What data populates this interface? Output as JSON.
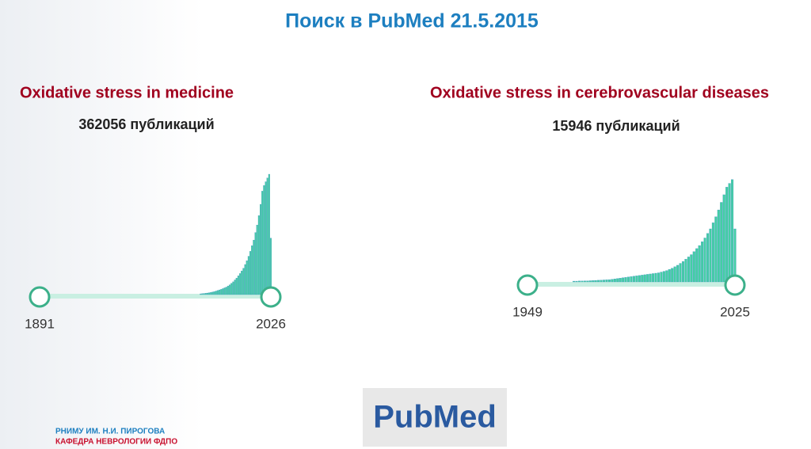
{
  "title": "Поиск в PubMed 21.5.2015",
  "footer": [
    "РНИМУ ИМ. Н.И. ПИРОГОВА",
    "КАФЕДРА НЕВРОЛОГИИ ФДПО"
  ],
  "logo": "PubMed",
  "chart_data": [
    {
      "type": "bar",
      "title": "Oxidative stress in medicine",
      "subtitle": "362056 публикаций",
      "x": [
        1985,
        1986,
        1987,
        1988,
        1989,
        1990,
        1991,
        1992,
        1993,
        1994,
        1995,
        1996,
        1997,
        1998,
        1999,
        2000,
        2001,
        2002,
        2003,
        2004,
        2005,
        2006,
        2007,
        2008,
        2009,
        2010,
        2011,
        2012,
        2013,
        2014,
        2015,
        2016,
        2017,
        2018,
        2019,
        2020,
        2021,
        2022,
        2023,
        2024,
        2025,
        2026
      ],
      "values": [
        200,
        250,
        300,
        350,
        420,
        500,
        600,
        700,
        800,
        950,
        1100,
        1250,
        1400,
        1600,
        1800,
        2000,
        2300,
        2600,
        3000,
        3400,
        3900,
        4400,
        5000,
        5600,
        6300,
        7000,
        8000,
        9000,
        10200,
        11500,
        13000,
        14500,
        16500,
        18500,
        21000,
        24000,
        27500,
        29000,
        30000,
        31000,
        32000,
        15000
      ],
      "xlim": [
        1891,
        2026
      ],
      "xticks": [
        1891,
        2026
      ],
      "ylim": [
        0,
        32000
      ],
      "color": "#43cfa4"
    },
    {
      "type": "bar",
      "title": "Oxidative stress in cerebrovascular diseases",
      "subtitle": "15946 публикаций",
      "x": [
        1966,
        1967,
        1968,
        1969,
        1970,
        1971,
        1972,
        1973,
        1974,
        1975,
        1976,
        1977,
        1978,
        1979,
        1980,
        1981,
        1982,
        1983,
        1984,
        1985,
        1986,
        1987,
        1988,
        1989,
        1990,
        1991,
        1992,
        1993,
        1994,
        1995,
        1996,
        1997,
        1998,
        1999,
        2000,
        2001,
        2002,
        2003,
        2004,
        2005,
        2006,
        2007,
        2008,
        2009,
        2010,
        2011,
        2012,
        2013,
        2014,
        2015,
        2016,
        2017,
        2018,
        2019,
        2020,
        2021,
        2022,
        2023,
        2024,
        2025
      ],
      "values": [
        10,
        10,
        12,
        12,
        14,
        14,
        16,
        18,
        20,
        22,
        24,
        26,
        28,
        30,
        35,
        40,
        45,
        50,
        55,
        60,
        65,
        70,
        75,
        80,
        85,
        90,
        95,
        100,
        105,
        110,
        115,
        120,
        130,
        140,
        150,
        165,
        180,
        200,
        220,
        245,
        270,
        300,
        330,
        360,
        400,
        440,
        480,
        530,
        580,
        640,
        700,
        780,
        860,
        950,
        1050,
        1150,
        1250,
        1300,
        1350,
        700
      ],
      "xlim": [
        1949,
        2025
      ],
      "xticks": [
        1949,
        2025
      ],
      "ylim": [
        0,
        1400
      ],
      "color": "#43cfa4"
    }
  ]
}
